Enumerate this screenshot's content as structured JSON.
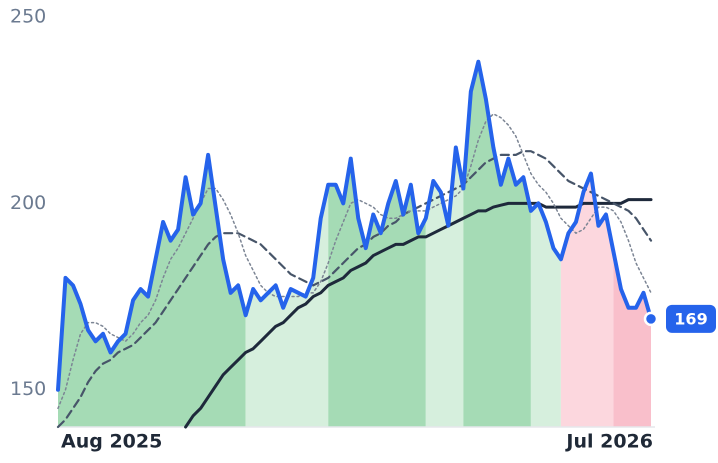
{
  "chart_data": {
    "type": "line",
    "categories": [
      "Aug 2025",
      null,
      null,
      null,
      null,
      null,
      null,
      null,
      null,
      null,
      null,
      null,
      null,
      null,
      null,
      null,
      null,
      null,
      null,
      null,
      null,
      null,
      null,
      null,
      null,
      null,
      null,
      null,
      null,
      null,
      null,
      null,
      null,
      null,
      null,
      null,
      null,
      null,
      null,
      null,
      null,
      null,
      null,
      null,
      null,
      null,
      null,
      null,
      null,
      null,
      null,
      null,
      null,
      null,
      null,
      null,
      null,
      null,
      null,
      null,
      null,
      null,
      null,
      null,
      null,
      null,
      null,
      null,
      null,
      null,
      null,
      null,
      null,
      null,
      null,
      null,
      null,
      null,
      null,
      "Jul 2026"
    ],
    "ylim": [
      140,
      250
    ],
    "yticks": [
      150,
      200,
      250
    ],
    "grid": false,
    "area_zones": [
      {
        "from": 0,
        "to": 25,
        "color": "#a5dbb5"
      },
      {
        "from": 25,
        "to": 36,
        "color": "#d6efdd"
      },
      {
        "from": 36,
        "to": 49,
        "color": "#a5dbb5"
      },
      {
        "from": 49,
        "to": 54,
        "color": "#d6efdd"
      },
      {
        "from": 54,
        "to": 63,
        "color": "#a5dbb5"
      },
      {
        "from": 63,
        "to": 67,
        "color": "#d6efdd"
      },
      {
        "from": 67,
        "to": 74,
        "color": "#fcd7de"
      },
      {
        "from": 74,
        "to": 79,
        "color": "#f9bfcb"
      }
    ],
    "series": [
      {
        "color": "#2563eb",
        "style": "solid",
        "values": [
          150,
          180,
          178,
          173,
          166,
          163,
          165,
          160,
          163,
          165,
          174,
          177,
          175,
          185,
          195,
          190,
          193,
          207,
          197,
          200,
          213,
          199,
          185,
          176,
          178,
          170,
          177,
          174,
          176,
          178,
          172,
          177,
          176,
          175,
          180,
          196,
          205,
          205,
          200,
          212,
          196,
          188,
          197,
          192,
          200,
          206,
          197,
          205,
          192,
          196,
          206,
          203,
          194,
          215,
          204,
          230,
          238,
          228,
          215,
          205,
          212,
          205,
          207,
          198,
          200,
          195,
          188,
          185,
          192,
          195,
          203,
          208,
          194,
          197,
          187,
          177,
          172,
          172,
          176,
          169
        ]
      },
      {
        "color": "#7c8594",
        "style": "dotted",
        "values": [
          145,
          150,
          158,
          165,
          168,
          168,
          167,
          165,
          164,
          163,
          165,
          168,
          170,
          174,
          180,
          185,
          188,
          192,
          196,
          200,
          204,
          204,
          201,
          197,
          192,
          186,
          182,
          178,
          176,
          175,
          175,
          175,
          175,
          176,
          176,
          179,
          184,
          190,
          195,
          200,
          201,
          200,
          199,
          197,
          196,
          196,
          197,
          198,
          198,
          198,
          199,
          200,
          201,
          202,
          204,
          210,
          217,
          222,
          224,
          223,
          221,
          218,
          213,
          208,
          205,
          203,
          200,
          196,
          194,
          192,
          193,
          196,
          199,
          199,
          198,
          195,
          190,
          184,
          180,
          176
        ]
      },
      {
        "color": "#475569",
        "style": "dashed",
        "values": [
          140,
          142,
          145,
          148,
          152,
          155,
          157,
          158,
          160,
          161,
          162,
          164,
          166,
          168,
          171,
          174,
          177,
          180,
          183,
          186,
          189,
          191,
          192,
          192,
          192,
          191,
          190,
          189,
          187,
          185,
          183,
          181,
          180,
          179,
          178,
          179,
          180,
          182,
          184,
          186,
          188,
          189,
          191,
          192,
          194,
          195,
          197,
          198,
          199,
          200,
          201,
          202,
          203,
          204,
          205,
          207,
          209,
          211,
          212,
          213,
          213,
          213,
          214,
          214,
          213,
          212,
          210,
          208,
          206,
          205,
          204,
          203,
          202,
          201,
          200,
          199,
          198,
          196,
          193,
          190
        ]
      },
      {
        "color": "#1e293b",
        "style": "solid",
        "values": [
          null,
          null,
          null,
          null,
          null,
          null,
          null,
          null,
          null,
          null,
          null,
          null,
          null,
          null,
          null,
          null,
          null,
          140,
          143,
          145,
          148,
          151,
          154,
          156,
          158,
          160,
          161,
          163,
          165,
          167,
          168,
          170,
          172,
          173,
          175,
          176,
          178,
          179,
          180,
          182,
          183,
          184,
          186,
          187,
          188,
          189,
          189,
          190,
          191,
          191,
          192,
          193,
          194,
          195,
          196,
          197,
          198,
          198,
          199,
          199.5,
          200,
          200,
          200,
          200,
          200,
          199,
          199,
          199,
          199,
          199,
          200,
          200,
          200,
          200,
          200,
          200,
          201,
          201,
          201,
          201
        ]
      }
    ]
  }
}
